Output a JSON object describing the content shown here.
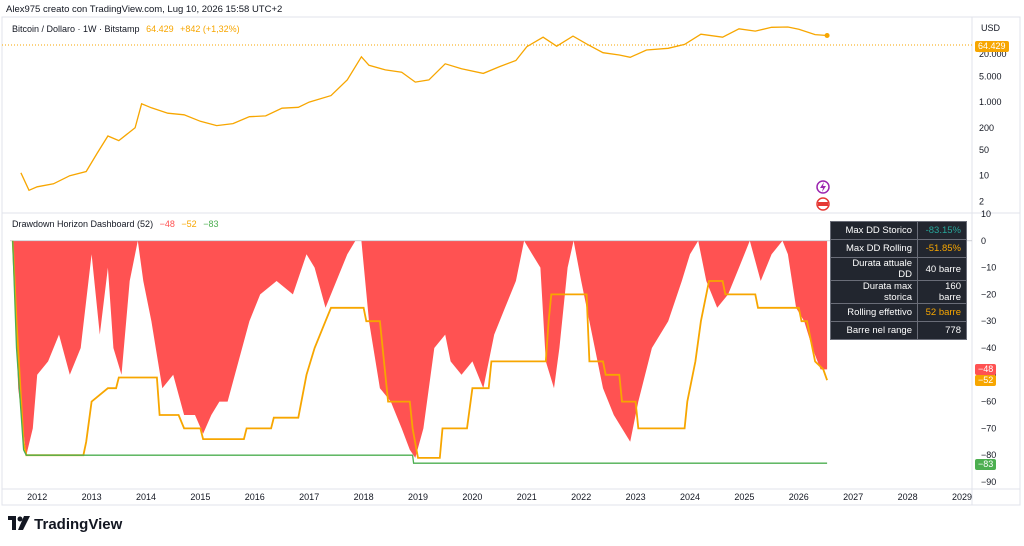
{
  "header": {
    "text": "Alex975 creato con TradingView.com, Lug 10, 2026 15:58 UTC+2"
  },
  "top_legend": {
    "symbol": "Bitcoin / Dollaro · 1W · Bitstamp",
    "price": "64.429",
    "change": "+842 (+1,32%)"
  },
  "bottom_legend": {
    "name": "Drawdown Horizon Dashboard (52)",
    "v1": "−48",
    "v2": "−52",
    "v3": "−83"
  },
  "top_axis": {
    "unit": "USD",
    "badge": "64.429"
  },
  "bottom_axis": {
    "badges": [
      "−48",
      "−52",
      "−83"
    ]
  },
  "stats_table": [
    {
      "label": "Max DD Storico",
      "value": "-83.15%",
      "color": "#26a69a"
    },
    {
      "label": "Max DD Rolling",
      "value": "-51.85%",
      "color": "#f7a600"
    },
    {
      "label": "Durata attuale DD",
      "value": "40 barre",
      "color": "#ffffff"
    },
    {
      "label": "Durata max storica",
      "value": "160 barre",
      "color": "#ffffff"
    },
    {
      "label": "Rolling effettivo",
      "value": "52 barre",
      "color": "#f7a600"
    },
    {
      "label": "Barre nel range",
      "value": "778",
      "color": "#ffffff"
    }
  ],
  "brand": {
    "logo_text": "TradingView"
  },
  "colors": {
    "price": "#f7a600",
    "drawdown": "#ff5252",
    "rolling": "#f7a600",
    "historic": "#4caf50",
    "grid": "#e0e3eb"
  },
  "chart_data": [
    {
      "type": "line",
      "title": "Bitcoin / Dollaro · 1W · Bitstamp",
      "log_scale": true,
      "ylabels": [
        "20.000",
        "5.000",
        "1.000",
        "200",
        "50",
        "10",
        "2"
      ],
      "yticks": [
        20000,
        5000,
        1000,
        200,
        50,
        10,
        2
      ],
      "x": [
        2011.7,
        2011.85,
        2012.0,
        2012.3,
        2012.6,
        2012.9,
        2013.1,
        2013.3,
        2013.5,
        2013.8,
        2013.92,
        2014.1,
        2014.4,
        2014.7,
        2015.0,
        2015.3,
        2015.6,
        2015.9,
        2016.2,
        2016.5,
        2016.8,
        2017.0,
        2017.4,
        2017.7,
        2017.96,
        2018.1,
        2018.4,
        2018.7,
        2018.95,
        2019.2,
        2019.5,
        2019.8,
        2020.2,
        2020.5,
        2020.8,
        2021.0,
        2021.3,
        2021.55,
        2021.85,
        2022.1,
        2022.4,
        2022.7,
        2022.9,
        2023.2,
        2023.6,
        2023.9,
        2024.2,
        2024.6,
        2024.9,
        2025.2,
        2025.5,
        2025.8,
        2026.0,
        2026.3,
        2026.52
      ],
      "series": [
        {
          "values": [
            12,
            4,
            5,
            6,
            10,
            13,
            40,
            120,
            90,
            200,
            900,
            700,
            500,
            450,
            300,
            230,
            260,
            400,
            420,
            680,
            720,
            1000,
            1500,
            4000,
            17000,
            10000,
            7500,
            6500,
            3500,
            4000,
            11000,
            8000,
            6000,
            9200,
            13500,
            32000,
            58000,
            33000,
            62000,
            38000,
            22000,
            19000,
            16500,
            26000,
            29000,
            37000,
            70000,
            58000,
            98000,
            85000,
            108000,
            110000,
            95000,
            68000,
            64429
          ]
        }
      ]
    },
    {
      "type": "area",
      "title": "Drawdown Horizon Dashboard (52)",
      "ylim": [
        -90,
        10
      ],
      "ylabels": [
        "10",
        "0",
        "−10",
        "−20",
        "−30",
        "−40",
        "−50",
        "−60",
        "−70",
        "−80",
        "−90"
      ],
      "yticks": [
        10,
        0,
        -10,
        -20,
        -30,
        -40,
        -50,
        -60,
        -70,
        -80,
        -90
      ],
      "xlabels": [
        "2012",
        "2013",
        "2014",
        "2015",
        "2016",
        "2017",
        "2018",
        "2019",
        "2020",
        "2021",
        "2022",
        "2023",
        "2024",
        "2025",
        "2026",
        "2027",
        "2028",
        "2029"
      ],
      "xticks": [
        2012,
        2013,
        2014,
        2015,
        2016,
        2017,
        2018,
        2019,
        2020,
        2021,
        2022,
        2023,
        2024,
        2025,
        2026,
        2027,
        2028,
        2029
      ],
      "series": [
        {
          "name": "Drawdown",
          "x": [
            2011.55,
            2011.65,
            2011.8,
            2011.92,
            2012.0,
            2012.2,
            2012.4,
            2012.6,
            2012.8,
            2013.0,
            2013.15,
            2013.3,
            2013.4,
            2013.55,
            2013.7,
            2013.85,
            2013.95,
            2014.1,
            2014.3,
            2014.5,
            2014.7,
            2014.9,
            2015.05,
            2015.2,
            2015.35,
            2015.5,
            2015.7,
            2015.9,
            2016.1,
            2016.4,
            2016.7,
            2016.95,
            2017.1,
            2017.3,
            2017.5,
            2017.7,
            2017.85,
            2017.96,
            2018.1,
            2018.3,
            2018.5,
            2018.7,
            2018.85,
            2018.95,
            2019.1,
            2019.3,
            2019.5,
            2019.6,
            2019.8,
            2020.0,
            2020.2,
            2020.4,
            2020.6,
            2020.8,
            2020.95,
            2021.1,
            2021.25,
            2021.35,
            2021.5,
            2021.6,
            2021.75,
            2021.86,
            2022.0,
            2022.2,
            2022.4,
            2022.6,
            2022.75,
            2022.9,
            2023.05,
            2023.3,
            2023.6,
            2023.85,
            2024.0,
            2024.15,
            2024.3,
            2024.5,
            2024.7,
            2024.9,
            2025.1,
            2025.3,
            2025.5,
            2025.7,
            2025.8,
            2025.95,
            2026.1,
            2026.25,
            2026.4,
            2026.52
          ],
          "values": [
            0,
            -55,
            -80,
            -70,
            -50,
            -45,
            -35,
            -50,
            -40,
            -5,
            -35,
            -10,
            -40,
            -50,
            -15,
            0,
            -15,
            -30,
            -55,
            -50,
            -65,
            -65,
            -72,
            -65,
            -60,
            -60,
            -45,
            -30,
            -20,
            -15,
            -20,
            -5,
            -10,
            -25,
            -15,
            -5,
            0,
            0,
            -30,
            -55,
            -60,
            -70,
            -78,
            -81,
            -70,
            -40,
            -35,
            -45,
            -50,
            -45,
            -55,
            -35,
            -25,
            -15,
            0,
            -5,
            -10,
            -45,
            -55,
            -40,
            -10,
            0,
            -15,
            -35,
            -55,
            -65,
            -70,
            -75,
            -60,
            -40,
            -30,
            -15,
            -5,
            0,
            -15,
            -25,
            -20,
            -10,
            0,
            -15,
            -5,
            0,
            -5,
            -25,
            -30,
            -40,
            -48,
            -48
          ]
        },
        {
          "name": "Rolling",
          "x": [
            2011.55,
            2011.62,
            2011.75,
            2011.8,
            2012.0,
            2012.5,
            2012.85,
            2012.9,
            2013.0,
            2013.3,
            2013.45,
            2013.5,
            2014.2,
            2014.25,
            2014.6,
            2014.7,
            2015.0,
            2015.05,
            2015.8,
            2015.85,
            2016.3,
            2016.35,
            2016.8,
            2016.95,
            2017.1,
            2017.3,
            2017.4,
            2017.45,
            2018.0,
            2018.05,
            2018.3,
            2018.45,
            2018.85,
            2018.9,
            2019.0,
            2019.4,
            2019.45,
            2019.9,
            2020.0,
            2020.3,
            2020.35,
            2021.35,
            2021.4,
            2021.45,
            2021.5,
            2022.1,
            2022.15,
            2022.4,
            2022.45,
            2022.7,
            2022.75,
            2023.0,
            2023.05,
            2023.9,
            2023.95,
            2024.1,
            2024.2,
            2024.3,
            2024.35,
            2024.6,
            2024.65,
            2025.2,
            2025.25,
            2025.9,
            2026.0,
            2026.05,
            2026.15,
            2026.3,
            2026.45,
            2026.52
          ],
          "values": [
            0,
            -30,
            -75,
            -80,
            -80,
            -80,
            -80,
            -75,
            -60,
            -55,
            -55,
            -51,
            -51,
            -65,
            -65,
            -70,
            -70,
            -74,
            -74,
            -70,
            -70,
            -66,
            -66,
            -50,
            -40,
            -30,
            -25,
            -25,
            -25,
            -30,
            -30,
            -60,
            -60,
            -70,
            -81,
            -81,
            -70,
            -70,
            -55,
            -55,
            -45,
            -45,
            -30,
            -20,
            -20,
            -20,
            -45,
            -45,
            -50,
            -50,
            -60,
            -60,
            -70,
            -70,
            -60,
            -45,
            -30,
            -20,
            -15,
            -15,
            -20,
            -20,
            -25,
            -25,
            -25,
            -30,
            -30,
            -45,
            -48,
            -52
          ]
        },
        {
          "name": "Storico",
          "x": [
            2011.55,
            2011.62,
            2011.75,
            2011.8,
            2018.9,
            2018.92,
            2026.52
          ],
          "values": [
            0,
            -40,
            -78,
            -80,
            -80,
            -83,
            -83
          ]
        }
      ]
    }
  ]
}
